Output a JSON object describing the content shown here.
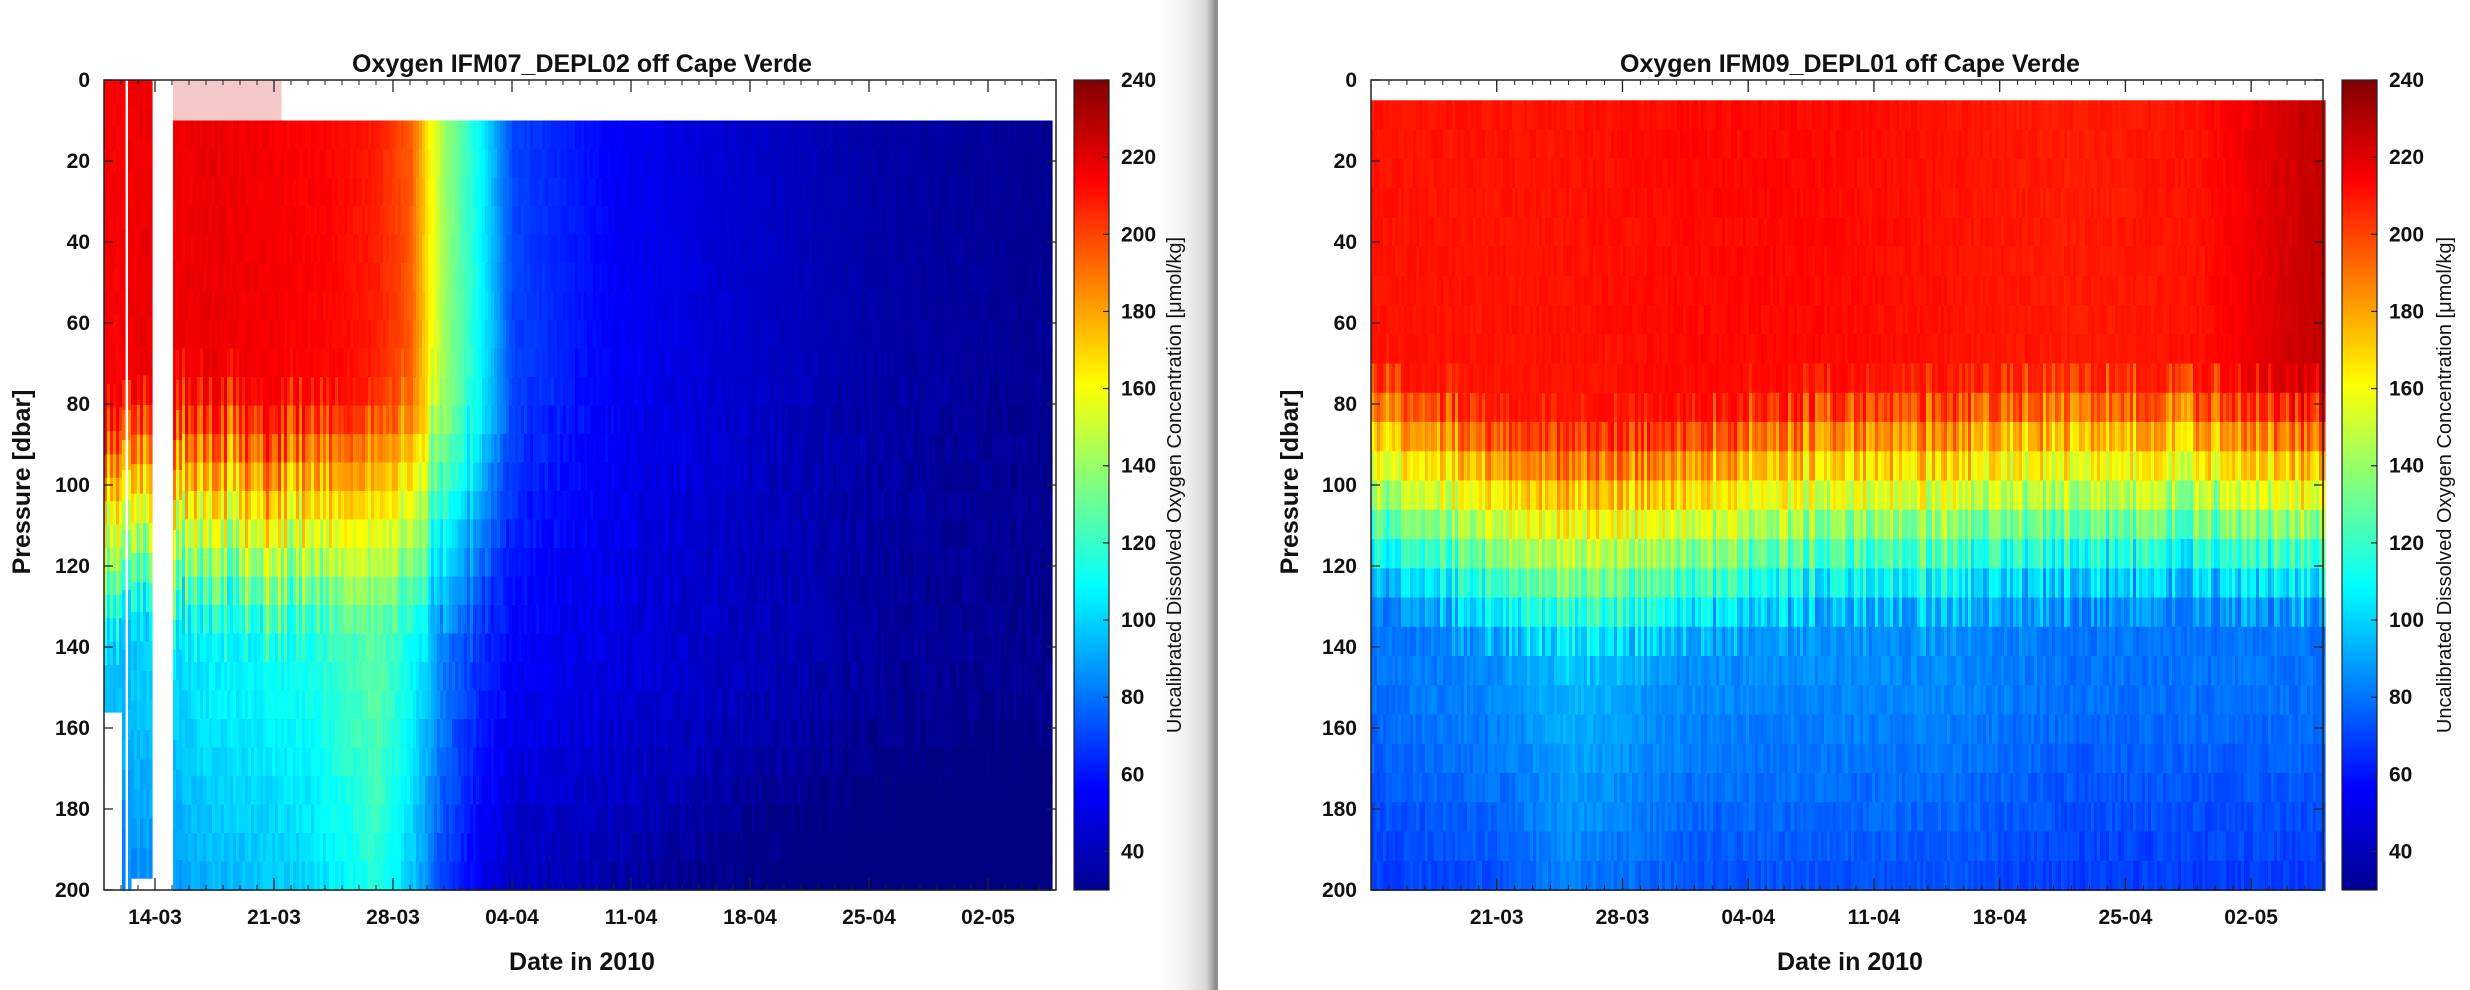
{
  "window": {
    "accent_page": "#ffffff",
    "seam_color": "#8f8f8f"
  },
  "chart_data": [
    {
      "type": "heatmap",
      "title": "Oxygen IFM07_DEPL02 off Cape Verde",
      "xlabel": "Date in 2010",
      "ylabel": "Pressure [dbar]",
      "colorbar_label": "Uncalibrated Dissolved Oxygen Concentration [μmol/kg]",
      "colormap": "jet",
      "x_tick_labels": [
        "14-03",
        "21-03",
        "28-03",
        "04-04",
        "11-04",
        "18-04",
        "25-04",
        "02-05"
      ],
      "x_range": [
        "2010-03-11",
        "2010-05-06"
      ],
      "y_ticks": [
        0,
        20,
        40,
        60,
        80,
        100,
        120,
        140,
        160,
        180,
        200
      ],
      "ylim": [
        0,
        200
      ],
      "y_reversed": true,
      "colorbar_ticks": [
        40,
        60,
        80,
        100,
        120,
        140,
        160,
        180,
        200,
        220,
        240
      ],
      "clim": [
        30,
        240
      ],
      "profiles": [
        {
          "date": "2010-03-12",
          "surface": 215,
          "deep": 95
        },
        {
          "date": "2010-03-13",
          "surface": 218,
          "deep": 98
        },
        {
          "date": "2010-03-15",
          "surface": 216,
          "deep": 100
        },
        {
          "date": "2010-03-17",
          "surface": 218,
          "deep": 105
        },
        {
          "date": "2010-03-20",
          "surface": 216,
          "deep": 108
        },
        {
          "date": "2010-03-23",
          "surface": 214,
          "deep": 112
        },
        {
          "date": "2010-03-25",
          "surface": 212,
          "deep": 120
        },
        {
          "date": "2010-03-27",
          "surface": 208,
          "deep": 128
        },
        {
          "date": "2010-03-29",
          "surface": 195,
          "deep": 110
        },
        {
          "date": "2010-03-30",
          "surface": 165,
          "deep": 95
        },
        {
          "date": "2010-03-31",
          "surface": 140,
          "deep": 80
        },
        {
          "date": "2010-04-02",
          "surface": 110,
          "deep": 65
        },
        {
          "date": "2010-04-04",
          "surface": 70,
          "deep": 55
        },
        {
          "date": "2010-04-10",
          "surface": 55,
          "deep": 50
        },
        {
          "date": "2010-04-18",
          "surface": 45,
          "deep": 42
        },
        {
          "date": "2010-04-25",
          "surface": 38,
          "deep": 36
        },
        {
          "date": "2010-05-05",
          "surface": 34,
          "deep": 33
        }
      ]
    },
    {
      "type": "heatmap",
      "title": "Oxygen IFM09_DEPL01 off Cape Verde",
      "xlabel": "Date in 2010",
      "ylabel": "Pressure [dbar]",
      "colorbar_label": "Uncalibrated Dissolved Oxygen Concentration [μmol/kg]",
      "colormap": "jet",
      "x_tick_labels": [
        "21-03",
        "28-03",
        "04-04",
        "11-04",
        "18-04",
        "25-04",
        "02-05"
      ],
      "x_range": [
        "2010-03-14",
        "2010-05-06"
      ],
      "y_ticks": [
        0,
        20,
        40,
        60,
        80,
        100,
        120,
        140,
        160,
        180,
        200
      ],
      "ylim": [
        0,
        200
      ],
      "y_reversed": true,
      "colorbar_ticks": [
        40,
        60,
        80,
        100,
        120,
        140,
        160,
        180,
        200,
        220,
        240
      ],
      "clim": [
        30,
        240
      ],
      "profiles": [
        {
          "date": "2010-03-14",
          "surface": 210,
          "mixed_layer_depth": 70,
          "deep": 80
        },
        {
          "date": "2010-03-21",
          "surface": 210,
          "mixed_layer_depth": 80,
          "deep": 85
        },
        {
          "date": "2010-03-25",
          "surface": 210,
          "mixed_layer_depth": 85,
          "deep": 95
        },
        {
          "date": "2010-04-01",
          "surface": 212,
          "mixed_layer_depth": 80,
          "deep": 85
        },
        {
          "date": "2010-04-08",
          "surface": 212,
          "mixed_layer_depth": 75,
          "deep": 85
        },
        {
          "date": "2010-04-15",
          "surface": 210,
          "mixed_layer_depth": 75,
          "deep": 85
        },
        {
          "date": "2010-04-22",
          "surface": 208,
          "mixed_layer_depth": 72,
          "deep": 80
        },
        {
          "date": "2010-04-29",
          "surface": 210,
          "mixed_layer_depth": 72,
          "deep": 80
        },
        {
          "date": "2010-05-05",
          "surface": 225,
          "mixed_layer_depth": 75,
          "deep": 80
        }
      ]
    }
  ]
}
